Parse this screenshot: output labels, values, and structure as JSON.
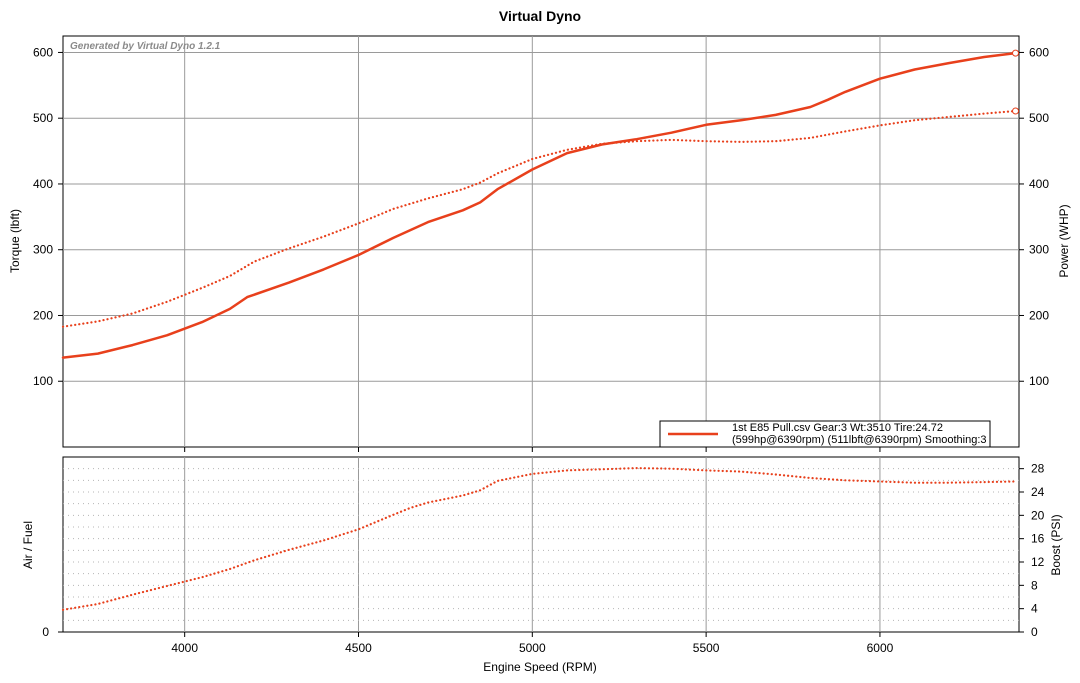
{
  "chart_data": [
    {
      "type": "line",
      "title": "Virtual Dyno",
      "watermark": "Generated by Virtual Dyno 1.2.1",
      "xlabel": "Engine Speed (RPM)",
      "ylabel_left": "Torque (lbft)",
      "ylabel_right": "Power (WHP)",
      "xlim": [
        3650,
        6400
      ],
      "ylim_left": [
        0,
        625
      ],
      "ylim_right": [
        0,
        625
      ],
      "x_ticks": [
        4000,
        4500,
        5000,
        5500,
        6000
      ],
      "y_ticks_left": [
        100,
        200,
        300,
        400,
        500,
        600
      ],
      "y_ticks_right": [
        100,
        200,
        300,
        400,
        500,
        600
      ],
      "grid": true,
      "legend_placement": "bottom-right",
      "legend_line1": "1st E85 Pull.csv Gear:3 Wt:3510 Tire:24.72",
      "legend_line2": "(599hp@6390rpm) (511lbft@6390rpm) Smoothing:3",
      "line_color": "#e8401c",
      "series": [
        {
          "style": "solid",
          "axis": "right",
          "x": [
            3650,
            3750,
            3850,
            3950,
            4050,
            4130,
            4180,
            4300,
            4400,
            4500,
            4600,
            4700,
            4800,
            4850,
            4900,
            5000,
            5100,
            5200,
            5300,
            5400,
            5500,
            5600,
            5700,
            5800,
            5850,
            5900,
            6000,
            6100,
            6200,
            6300,
            6390
          ],
          "values": [
            136,
            142,
            155,
            170,
            190,
            210,
            228,
            250,
            270,
            292,
            318,
            342,
            360,
            372,
            392,
            422,
            447,
            460,
            468,
            478,
            490,
            497,
            505,
            517,
            528,
            540,
            560,
            574,
            584,
            593,
            599
          ]
        },
        {
          "style": "dotted",
          "axis": "left",
          "x": [
            3650,
            3750,
            3850,
            3950,
            4050,
            4130,
            4200,
            4300,
            4400,
            4500,
            4600,
            4700,
            4800,
            4850,
            4900,
            5000,
            5100,
            5200,
            5300,
            5400,
            5500,
            5600,
            5700,
            5800,
            5900,
            6000,
            6100,
            6200,
            6300,
            6390
          ],
          "values": [
            183,
            191,
            203,
            221,
            242,
            260,
            282,
            302,
            320,
            340,
            362,
            378,
            392,
            402,
            416,
            438,
            452,
            461,
            465,
            467,
            465,
            464,
            465,
            470,
            480,
            489,
            497,
            502,
            507,
            511
          ]
        }
      ]
    },
    {
      "type": "line",
      "ylabel_left": "Air / Fuel",
      "ylabel_right": "Boost (PSI)",
      "xlim": [
        3650,
        6400
      ],
      "ylim_right": [
        0,
        30
      ],
      "y_ticks_right": [
        0,
        4,
        8,
        12,
        16,
        20,
        24,
        28
      ],
      "y_ticks_left": [
        0
      ],
      "grid": true,
      "series": [
        {
          "style": "dotted",
          "axis": "right",
          "x": [
            3650,
            3750,
            3850,
            3950,
            4050,
            4130,
            4200,
            4300,
            4400,
            4500,
            4600,
            4650,
            4700,
            4800,
            4850,
            4900,
            5000,
            5100,
            5200,
            5300,
            5400,
            5500,
            5600,
            5700,
            5800,
            5900,
            6000,
            6100,
            6200,
            6300,
            6390
          ],
          "values": [
            3.8,
            4.8,
            6.4,
            7.9,
            9.4,
            10.8,
            12.3,
            14.1,
            15.7,
            17.6,
            20.1,
            21.3,
            22.2,
            23.4,
            24.3,
            25.9,
            27.1,
            27.7,
            27.9,
            28.1,
            28.0,
            27.7,
            27.5,
            27.0,
            26.4,
            26.0,
            25.8,
            25.6,
            25.6,
            25.7,
            25.8
          ]
        }
      ]
    }
  ]
}
